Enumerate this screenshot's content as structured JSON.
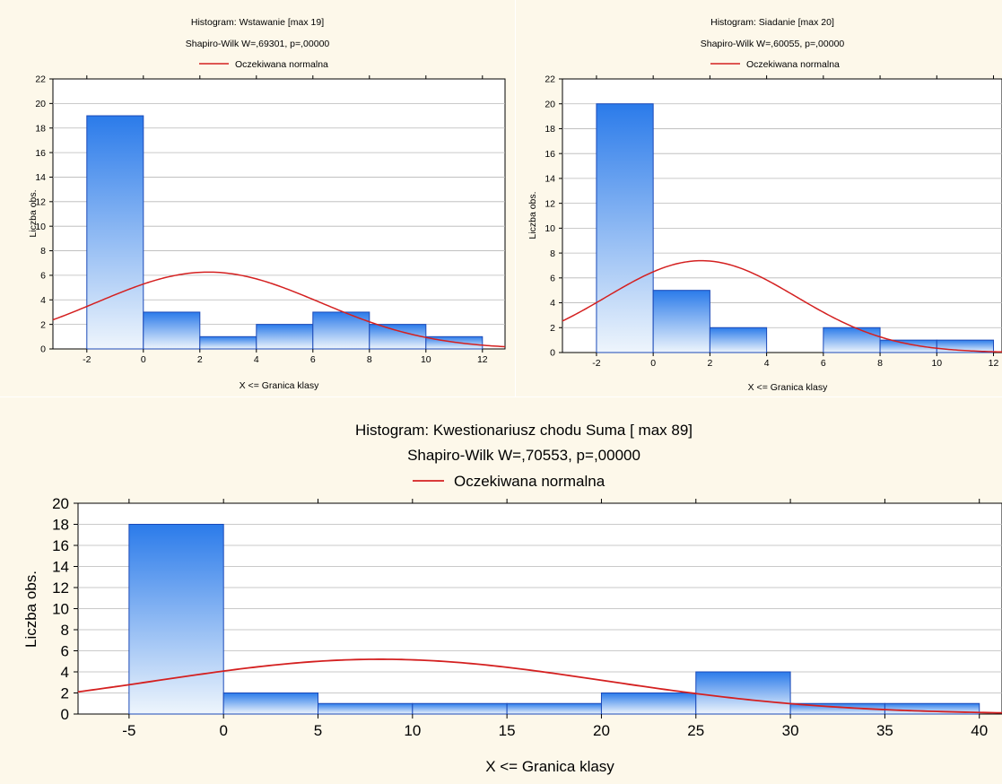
{
  "chart_data": [
    {
      "type": "bar",
      "title": "Histogram: Wstawanie [max 19]",
      "subtitle": "Shapiro-Wilk W=,69301, p=,00000",
      "legend": [
        "Oczekiwana normalna"
      ],
      "xlabel": "X <= Granica klasy",
      "ylabel": "Liczba obs.",
      "xlim": [
        -3.2,
        12.8
      ],
      "ylim": [
        0,
        22
      ],
      "xticks": [
        "-2",
        "0",
        "2",
        "4",
        "6",
        "8",
        "10",
        "12"
      ],
      "yticks": [
        "0",
        "2",
        "4",
        "6",
        "8",
        "10",
        "12",
        "14",
        "16",
        "18",
        "20",
        "22"
      ],
      "bins": [
        [
          -2,
          0
        ],
        [
          0,
          2
        ],
        [
          2,
          4
        ],
        [
          4,
          6
        ],
        [
          6,
          8
        ],
        [
          8,
          10
        ],
        [
          10,
          12
        ]
      ],
      "values": [
        19,
        3,
        1,
        2,
        3,
        2,
        1
      ],
      "normal": {
        "mean": 2.3,
        "sd": 3.95
      },
      "colors": {
        "bar_stroke": "#1a49b8",
        "bar_top": "#2b7bea",
        "bar_bottom": "#eef5fc",
        "curve": "#d42020"
      }
    },
    {
      "type": "bar",
      "title": "Histogram: Siadanie [max 20]",
      "subtitle": "Shapiro-Wilk W=,60055, p=,00000",
      "legend": [
        "Oczekiwana normalna"
      ],
      "xlabel": "X <= Granica klasy",
      "ylabel": "Liczba obs.",
      "xlim": [
        -3.2,
        12.3
      ],
      "ylim": [
        0,
        22
      ],
      "xticks": [
        "-2",
        "0",
        "2",
        "4",
        "6",
        "8",
        "10",
        "12"
      ],
      "yticks": [
        "0",
        "2",
        "4",
        "6",
        "8",
        "10",
        "12",
        "14",
        "16",
        "18",
        "20",
        "22"
      ],
      "bins": [
        [
          -2,
          0
        ],
        [
          0,
          2
        ],
        [
          2,
          4
        ],
        [
          4,
          6
        ],
        [
          6,
          8
        ],
        [
          8,
          10
        ],
        [
          10,
          12
        ]
      ],
      "values": [
        20,
        5,
        2,
        0,
        2,
        1,
        1
      ],
      "normal": {
        "mean": 1.7,
        "sd": 3.35
      },
      "colors": {
        "bar_stroke": "#1a49b8",
        "bar_top": "#2b7bea",
        "bar_bottom": "#eef5fc",
        "curve": "#d42020"
      }
    },
    {
      "type": "bar",
      "title": "Histogram: Kwestionariusz chodu Suma [ max 89]",
      "subtitle": "Shapiro-Wilk W=,70553, p=,00000",
      "legend": [
        "Oczekiwana normalna"
      ],
      "xlabel": "X <= Granica klasy",
      "ylabel": "Liczba obs.",
      "xlim": [
        -7.7,
        41.2
      ],
      "ylim": [
        0,
        20
      ],
      "xticks": [
        "-5",
        "0",
        "5",
        "10",
        "15",
        "20",
        "25",
        "30",
        "35",
        "40"
      ],
      "yticks": [
        "0",
        "2",
        "4",
        "6",
        "8",
        "10",
        "12",
        "14",
        "16",
        "18",
        "20"
      ],
      "bins": [
        [
          -5,
          0
        ],
        [
          0,
          5
        ],
        [
          5,
          10
        ],
        [
          10,
          15
        ],
        [
          15,
          20
        ],
        [
          20,
          25
        ],
        [
          25,
          30
        ],
        [
          30,
          35
        ],
        [
          35,
          40
        ]
      ],
      "values": [
        18,
        2,
        1,
        1,
        1,
        2,
        4,
        1,
        1
      ],
      "normal": {
        "mean": 8.3,
        "sd": 11.9
      },
      "colors": {
        "bar_stroke": "#1a49b8",
        "bar_top": "#2b7bea",
        "bar_bottom": "#eef5fc",
        "curve": "#d42020"
      }
    }
  ]
}
